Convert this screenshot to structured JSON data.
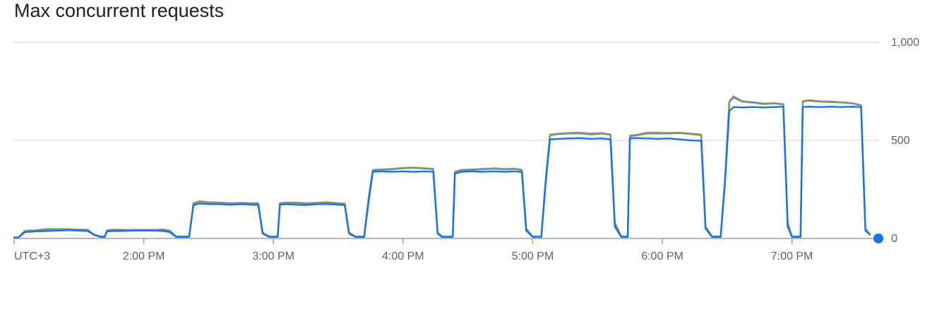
{
  "chart_data": {
    "type": "line",
    "title": "Max concurrent requests",
    "timezone_label": "UTC+3",
    "x_ticks": [
      "2:00 PM",
      "3:00 PM",
      "4:00 PM",
      "5:00 PM",
      "6:00 PM",
      "7:00 PM"
    ],
    "x_tick_minutes": [
      60,
      120,
      180,
      240,
      300,
      360
    ],
    "xlim_minutes": [
      0,
      400
    ],
    "y_ticks": [
      "1,000",
      "500",
      "0"
    ],
    "y_tick_values": [
      1000,
      500,
      0
    ],
    "ylim": [
      0,
      1000
    ],
    "grid": true,
    "colors": {
      "series_green": "#7a9a5a",
      "series_purple": "#b07ae0",
      "series_blue": "#1a73e8",
      "grid": "#dadce0",
      "axis": "#9aa0a6"
    },
    "series": [
      {
        "color": "#b07ae0",
        "points": [
          [
            0,
            5
          ],
          [
            2,
            5
          ],
          [
            5,
            40
          ],
          [
            10,
            42
          ],
          [
            15,
            48
          ],
          [
            20,
            48
          ],
          [
            25,
            48
          ],
          [
            30,
            45
          ],
          [
            34,
            45
          ],
          [
            37,
            20
          ],
          [
            40,
            10
          ],
          [
            42,
            10
          ],
          [
            43,
            42
          ],
          [
            46,
            45
          ],
          [
            50,
            44
          ],
          [
            55,
            44
          ],
          [
            60,
            44
          ],
          [
            65,
            44
          ],
          [
            69,
            46
          ],
          [
            72,
            40
          ],
          [
            75,
            10
          ],
          [
            81,
            10
          ],
          [
            83,
            180
          ],
          [
            86,
            190
          ],
          [
            90,
            185
          ],
          [
            95,
            183
          ],
          [
            100,
            180
          ],
          [
            105,
            182
          ],
          [
            110,
            180
          ],
          [
            113,
            180
          ],
          [
            115,
            30
          ],
          [
            118,
            10
          ],
          [
            122,
            10
          ],
          [
            123,
            180
          ],
          [
            126,
            183
          ],
          [
            130,
            183
          ],
          [
            135,
            180
          ],
          [
            140,
            182
          ],
          [
            145,
            185
          ],
          [
            150,
            180
          ],
          [
            153,
            178
          ],
          [
            155,
            30
          ],
          [
            158,
            10
          ],
          [
            162,
            10
          ],
          [
            164,
            200
          ],
          [
            166,
            350
          ],
          [
            170,
            352
          ],
          [
            175,
            355
          ],
          [
            180,
            360
          ],
          [
            185,
            362
          ],
          [
            190,
            358
          ],
          [
            194,
            355
          ],
          [
            196,
            30
          ],
          [
            198,
            10
          ],
          [
            203,
            10
          ],
          [
            204,
            340
          ],
          [
            207,
            350
          ],
          [
            212,
            352
          ],
          [
            217,
            355
          ],
          [
            222,
            358
          ],
          [
            227,
            354
          ],
          [
            232,
            356
          ],
          [
            235,
            350
          ],
          [
            237,
            50
          ],
          [
            240,
            10
          ],
          [
            244,
            10
          ],
          [
            246,
            300
          ],
          [
            248,
            530
          ],
          [
            252,
            535
          ],
          [
            257,
            538
          ],
          [
            262,
            540
          ],
          [
            267,
            535
          ],
          [
            272,
            538
          ],
          [
            276,
            530
          ],
          [
            278,
            80
          ],
          [
            281,
            10
          ],
          [
            284,
            10
          ],
          [
            285,
            525
          ],
          [
            288,
            528
          ],
          [
            293,
            540
          ],
          [
            298,
            540
          ],
          [
            303,
            538
          ],
          [
            308,
            540
          ],
          [
            313,
            535
          ],
          [
            318,
            530
          ],
          [
            320,
            60
          ],
          [
            323,
            10
          ],
          [
            327,
            10
          ],
          [
            329,
            300
          ],
          [
            331,
            700
          ],
          [
            333,
            725
          ],
          [
            337,
            700
          ],
          [
            342,
            695
          ],
          [
            347,
            688
          ],
          [
            352,
            690
          ],
          [
            356,
            685
          ],
          [
            358,
            80
          ],
          [
            360,
            10
          ],
          [
            364,
            10
          ],
          [
            365,
            700
          ],
          [
            368,
            705
          ],
          [
            373,
            700
          ],
          [
            378,
            698
          ],
          [
            383,
            695
          ],
          [
            388,
            690
          ],
          [
            392,
            680
          ],
          [
            394,
            50
          ],
          [
            396,
            20
          ]
        ]
      },
      {
        "color": "#7a9a5a",
        "points": [
          [
            0,
            5
          ],
          [
            2,
            5
          ],
          [
            5,
            38
          ],
          [
            10,
            40
          ],
          [
            15,
            46
          ],
          [
            20,
            47
          ],
          [
            25,
            47
          ],
          [
            30,
            44
          ],
          [
            34,
            44
          ],
          [
            37,
            20
          ],
          [
            40,
            10
          ],
          [
            42,
            10
          ],
          [
            43,
            40
          ],
          [
            46,
            44
          ],
          [
            50,
            43
          ],
          [
            55,
            43
          ],
          [
            60,
            43
          ],
          [
            65,
            43
          ],
          [
            69,
            45
          ],
          [
            72,
            40
          ],
          [
            75,
            10
          ],
          [
            81,
            10
          ],
          [
            83,
            178
          ],
          [
            86,
            188
          ],
          [
            90,
            183
          ],
          [
            95,
            181
          ],
          [
            100,
            178
          ],
          [
            105,
            180
          ],
          [
            110,
            178
          ],
          [
            113,
            178
          ],
          [
            115,
            30
          ],
          [
            118,
            10
          ],
          [
            122,
            10
          ],
          [
            123,
            178
          ],
          [
            126,
            181
          ],
          [
            130,
            181
          ],
          [
            135,
            178
          ],
          [
            140,
            180
          ],
          [
            145,
            183
          ],
          [
            150,
            178
          ],
          [
            153,
            176
          ],
          [
            155,
            30
          ],
          [
            158,
            10
          ],
          [
            162,
            10
          ],
          [
            164,
            195
          ],
          [
            166,
            348
          ],
          [
            170,
            350
          ],
          [
            175,
            352
          ],
          [
            180,
            358
          ],
          [
            185,
            360
          ],
          [
            190,
            356
          ],
          [
            194,
            353
          ],
          [
            196,
            30
          ],
          [
            198,
            10
          ],
          [
            203,
            10
          ],
          [
            204,
            338
          ],
          [
            207,
            348
          ],
          [
            212,
            350
          ],
          [
            217,
            352
          ],
          [
            222,
            355
          ],
          [
            227,
            352
          ],
          [
            232,
            354
          ],
          [
            235,
            348
          ],
          [
            237,
            50
          ],
          [
            240,
            10
          ],
          [
            244,
            10
          ],
          [
            246,
            295
          ],
          [
            248,
            525
          ],
          [
            252,
            532
          ],
          [
            257,
            535
          ],
          [
            262,
            535
          ],
          [
            267,
            530
          ],
          [
            272,
            535
          ],
          [
            276,
            528
          ],
          [
            278,
            80
          ],
          [
            281,
            10
          ],
          [
            284,
            10
          ],
          [
            285,
            520
          ],
          [
            288,
            525
          ],
          [
            293,
            535
          ],
          [
            298,
            535
          ],
          [
            303,
            535
          ],
          [
            308,
            537
          ],
          [
            313,
            532
          ],
          [
            318,
            527
          ],
          [
            320,
            60
          ],
          [
            323,
            10
          ],
          [
            327,
            10
          ],
          [
            329,
            295
          ],
          [
            331,
            695
          ],
          [
            333,
            718
          ],
          [
            337,
            698
          ],
          [
            342,
            692
          ],
          [
            347,
            685
          ],
          [
            352,
            688
          ],
          [
            356,
            683
          ],
          [
            358,
            80
          ],
          [
            360,
            10
          ],
          [
            364,
            10
          ],
          [
            365,
            698
          ],
          [
            368,
            702
          ],
          [
            373,
            698
          ],
          [
            378,
            695
          ],
          [
            383,
            693
          ],
          [
            388,
            688
          ],
          [
            392,
            678
          ],
          [
            394,
            50
          ],
          [
            396,
            20
          ]
        ]
      },
      {
        "color": "#1a73e8",
        "points": [
          [
            0,
            5
          ],
          [
            2,
            5
          ],
          [
            5,
            32
          ],
          [
            10,
            36
          ],
          [
            15,
            38
          ],
          [
            20,
            40
          ],
          [
            25,
            42
          ],
          [
            30,
            40
          ],
          [
            34,
            38
          ],
          [
            37,
            18
          ],
          [
            40,
            8
          ],
          [
            42,
            8
          ],
          [
            43,
            36
          ],
          [
            46,
            38
          ],
          [
            50,
            38
          ],
          [
            55,
            40
          ],
          [
            60,
            40
          ],
          [
            65,
            40
          ],
          [
            69,
            38
          ],
          [
            72,
            32
          ],
          [
            75,
            8
          ],
          [
            81,
            8
          ],
          [
            83,
            170
          ],
          [
            86,
            178
          ],
          [
            90,
            175
          ],
          [
            95,
            175
          ],
          [
            100,
            172
          ],
          [
            105,
            175
          ],
          [
            110,
            172
          ],
          [
            113,
            170
          ],
          [
            115,
            25
          ],
          [
            118,
            8
          ],
          [
            122,
            8
          ],
          [
            123,
            172
          ],
          [
            126,
            175
          ],
          [
            130,
            172
          ],
          [
            135,
            170
          ],
          [
            140,
            175
          ],
          [
            145,
            175
          ],
          [
            150,
            172
          ],
          [
            153,
            170
          ],
          [
            155,
            25
          ],
          [
            158,
            8
          ],
          [
            162,
            8
          ],
          [
            164,
            180
          ],
          [
            166,
            340
          ],
          [
            170,
            342
          ],
          [
            175,
            340
          ],
          [
            180,
            342
          ],
          [
            185,
            340
          ],
          [
            190,
            342
          ],
          [
            194,
            340
          ],
          [
            196,
            25
          ],
          [
            198,
            8
          ],
          [
            203,
            8
          ],
          [
            204,
            330
          ],
          [
            207,
            340
          ],
          [
            212,
            342
          ],
          [
            217,
            340
          ],
          [
            222,
            342
          ],
          [
            227,
            340
          ],
          [
            232,
            342
          ],
          [
            235,
            338
          ],
          [
            237,
            40
          ],
          [
            240,
            8
          ],
          [
            244,
            8
          ],
          [
            246,
            280
          ],
          [
            248,
            505
          ],
          [
            252,
            508
          ],
          [
            257,
            510
          ],
          [
            262,
            512
          ],
          [
            267,
            508
          ],
          [
            272,
            510
          ],
          [
            276,
            505
          ],
          [
            278,
            60
          ],
          [
            281,
            8
          ],
          [
            284,
            8
          ],
          [
            285,
            510
          ],
          [
            288,
            512
          ],
          [
            293,
            510
          ],
          [
            298,
            508
          ],
          [
            303,
            510
          ],
          [
            308,
            505
          ],
          [
            313,
            500
          ],
          [
            318,
            498
          ],
          [
            320,
            50
          ],
          [
            323,
            8
          ],
          [
            327,
            8
          ],
          [
            329,
            280
          ],
          [
            331,
            650
          ],
          [
            333,
            670
          ],
          [
            337,
            668
          ],
          [
            342,
            670
          ],
          [
            347,
            668
          ],
          [
            352,
            670
          ],
          [
            356,
            672
          ],
          [
            358,
            60
          ],
          [
            360,
            8
          ],
          [
            364,
            8
          ],
          [
            365,
            670
          ],
          [
            368,
            672
          ],
          [
            373,
            670
          ],
          [
            378,
            672
          ],
          [
            383,
            670
          ],
          [
            388,
            672
          ],
          [
            392,
            670
          ],
          [
            394,
            40
          ],
          [
            396,
            20
          ]
        ]
      }
    ],
    "last_point": {
      "x": 400,
      "y": 0
    }
  }
}
